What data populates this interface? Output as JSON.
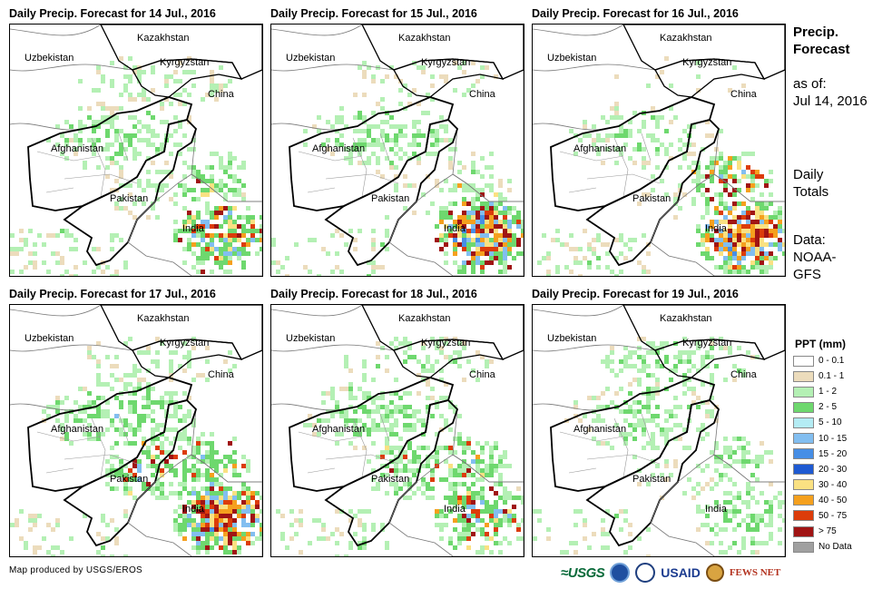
{
  "panels": [
    {
      "title": "Daily Precip. Forecast for 14 Jul., 2016",
      "intensity": [
        0.2,
        0.3,
        0.2,
        0.35,
        0.55
      ],
      "heavy": [
        0,
        0,
        0,
        0.1,
        0.25
      ]
    },
    {
      "title": "Daily Precip. Forecast for 15 Jul., 2016",
      "intensity": [
        0.15,
        0.3,
        0.1,
        0.2,
        0.7
      ],
      "heavy": [
        0,
        0,
        0,
        0.1,
        0.45
      ]
    },
    {
      "title": "Daily Precip. Forecast for 16 Jul., 2016",
      "intensity": [
        0.05,
        0.25,
        0.1,
        0.45,
        0.7
      ],
      "heavy": [
        0,
        0,
        0,
        0.35,
        0.6
      ]
    },
    {
      "title": "Daily Precip. Forecast for 17 Jul., 2016",
      "intensity": [
        0.2,
        0.4,
        0.45,
        0.45,
        0.7
      ],
      "heavy": [
        0,
        0,
        0.15,
        0.15,
        0.5
      ]
    },
    {
      "title": "Daily Precip. Forecast for 18 Jul., 2016",
      "intensity": [
        0.25,
        0.35,
        0.4,
        0.4,
        0.5
      ],
      "heavy": [
        0,
        0,
        0.05,
        0.15,
        0.2
      ]
    },
    {
      "title": "Daily Precip. Forecast for 19 Jul., 2016",
      "intensity": [
        0.3,
        0.3,
        0.2,
        0.3,
        0.35
      ],
      "heavy": [
        0,
        0,
        0,
        0,
        0
      ]
    }
  ],
  "countries": {
    "kazakhstan": "Kazakhstan",
    "uzbekistan": "Uzbekistan",
    "kyrgyzstan": "Kyrgyzstan",
    "china": "China",
    "afghanistan": "Afghanistan",
    "pakistan": "Pakistan",
    "india": "India"
  },
  "side": {
    "title_line1": "Precip.",
    "title_line2": "Forecast",
    "asof_line1": "as of:",
    "asof_line2": "Jul 14, 2016",
    "daily_line1": "Daily",
    "daily_line2": "Totals",
    "data_line1": "Data:",
    "data_line2": "NOAA-",
    "data_line3": "GFS"
  },
  "legend": {
    "title": "PPT (mm)",
    "items": [
      {
        "label": "0 - 0.1",
        "color": "#ffffff"
      },
      {
        "label": "0.1 - 1",
        "color": "#ecdcbc"
      },
      {
        "label": "1 - 2",
        "color": "#b4f0b4"
      },
      {
        "label": "2 - 5",
        "color": "#6ed86e"
      },
      {
        "label": "5 - 10",
        "color": "#b4ecf4"
      },
      {
        "label": "10 - 15",
        "color": "#82bef0"
      },
      {
        "label": "15 - 20",
        "color": "#468ee6"
      },
      {
        "label": "20 - 30",
        "color": "#1e5ad2"
      },
      {
        "label": "30 - 40",
        "color": "#fae182"
      },
      {
        "label": "40 - 50",
        "color": "#f5a01e"
      },
      {
        "label": "50 - 75",
        "color": "#dc3c0a"
      },
      {
        "label": "> 75",
        "color": "#a01414"
      },
      {
        "label": "No Data",
        "color": "#a0a0a0"
      }
    ]
  },
  "credit": "Map produced by USGS/EROS",
  "logos": {
    "usgs": "≈USGS",
    "usaid": "USAID",
    "fews": "FEWS NET"
  }
}
